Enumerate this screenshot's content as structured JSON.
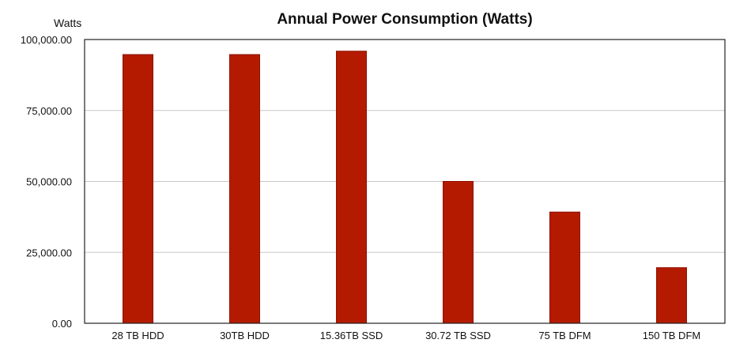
{
  "chart_data": {
    "type": "bar",
    "title": "Annual Power Consumption (Watts)",
    "ylabel": "Watts",
    "xlabel": "",
    "ylim": [
      0,
      100000
    ],
    "yticks": [
      "0.00",
      "25,000.00",
      "50,000.00",
      "75,000.00",
      "100,000.00"
    ],
    "ytick_values": [
      0,
      25000,
      50000,
      75000,
      100000
    ],
    "categories": [
      "28 TB HDD",
      "30TB HDD",
      "15.36TB SSD",
      "30.72 TB SSD",
      "75 TB DFM",
      "150 TB DFM"
    ],
    "values": [
      94700,
      94700,
      95900,
      50000,
      39200,
      19600
    ],
    "grid": true,
    "legend": "none",
    "colors": {
      "bar": "#b41a00",
      "bar_edge": "#8e1200",
      "grid": "#c8c8c8",
      "frame": "#222222"
    }
  }
}
